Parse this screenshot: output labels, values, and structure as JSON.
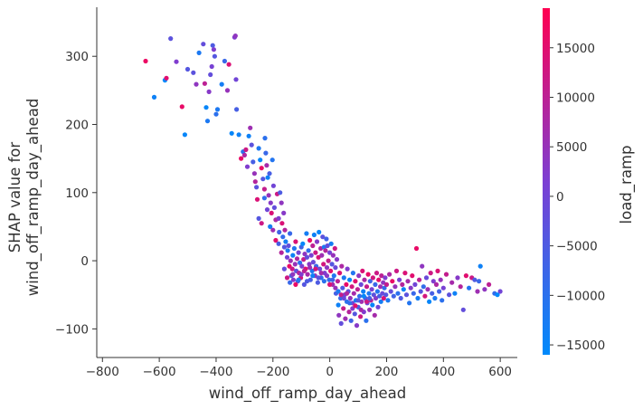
{
  "chart_data": {
    "type": "scatter",
    "title": "",
    "xlabel": "wind_off_ramp_day_ahead",
    "ylabel": "SHAP value for\nwind_off_ramp_day_ahead",
    "xlim": [
      -820,
      660
    ],
    "ylim": [
      -142,
      372
    ],
    "xticks": [
      -800,
      -600,
      -400,
      -200,
      0,
      200,
      400,
      600
    ],
    "yticks": [
      -100,
      0,
      100,
      200,
      300
    ],
    "grid": false,
    "colorbar": {
      "label": "load_ramp",
      "range": [
        -16000,
        19000
      ],
      "ticks": [
        -15000,
        -10000,
        -5000,
        0,
        5000,
        10000,
        15000
      ],
      "colors": [
        "#008afb",
        "#7c3fd3",
        "#ff0051"
      ]
    },
    "points": [
      [
        -648,
        293,
        16500
      ],
      [
        -618,
        240,
        -14000
      ],
      [
        -580,
        265,
        -16000
      ],
      [
        -575,
        268,
        15000
      ],
      [
        -560,
        326,
        -3000
      ],
      [
        -540,
        292,
        2000
      ],
      [
        -520,
        226,
        16000
      ],
      [
        -510,
        185,
        -15000
      ],
      [
        -500,
        281,
        -4000
      ],
      [
        -480,
        276,
        -3000
      ],
      [
        -470,
        259,
        4000
      ],
      [
        -460,
        305,
        -12000
      ],
      [
        -445,
        318,
        -2000
      ],
      [
        -440,
        260,
        10000
      ],
      [
        -435,
        225,
        -15000
      ],
      [
        -430,
        205,
        -12000
      ],
      [
        -425,
        248,
        3000
      ],
      [
        -420,
        273,
        -2000
      ],
      [
        -415,
        285,
        1000
      ],
      [
        -412,
        316,
        -5000
      ],
      [
        -408,
        310,
        2000
      ],
      [
        -405,
        300,
        -4000
      ],
      [
        -400,
        215,
        -10000
      ],
      [
        -395,
        222,
        -12000
      ],
      [
        -380,
        259,
        -13000
      ],
      [
        -370,
        293,
        -8000
      ],
      [
        -360,
        250,
        5000
      ],
      [
        -355,
        288,
        14000
      ],
      [
        -345,
        187,
        -15000
      ],
      [
        -335,
        328,
        2000
      ],
      [
        -332,
        330,
        4000
      ],
      [
        -330,
        266,
        0
      ],
      [
        -328,
        222,
        -6000
      ],
      [
        -320,
        185,
        -14000
      ],
      [
        -312,
        150,
        16000
      ],
      [
        -305,
        160,
        -10000
      ],
      [
        -300,
        155,
        8000
      ],
      [
        -295,
        163,
        12000
      ],
      [
        -290,
        138,
        2000
      ],
      [
        -285,
        183,
        -14000
      ],
      [
        -280,
        195,
        6000
      ],
      [
        -275,
        170,
        -3000
      ],
      [
        -270,
        145,
        -6000
      ],
      [
        -265,
        128,
        5000
      ],
      [
        -262,
        116,
        9000
      ],
      [
        -258,
        108,
        -3000
      ],
      [
        -255,
        90,
        14000
      ],
      [
        -250,
        165,
        -12000
      ],
      [
        -245,
        148,
        -15000
      ],
      [
        -240,
        136,
        16000
      ],
      [
        -235,
        120,
        -4000
      ],
      [
        -230,
        105,
        11000
      ],
      [
        -228,
        180,
        -10000
      ],
      [
        -225,
        158,
        -8000
      ],
      [
        -222,
        140,
        7000
      ],
      [
        -218,
        122,
        -14000
      ],
      [
        -215,
        96,
        5000
      ],
      [
        -212,
        128,
        -6000
      ],
      [
        -208,
        85,
        3000
      ],
      [
        -205,
        70,
        14000
      ],
      [
        -202,
        148,
        -11000
      ],
      [
        -198,
        110,
        0
      ],
      [
        -195,
        78,
        -2000
      ],
      [
        -190,
        60,
        8000
      ],
      [
        -185,
        98,
        12000
      ],
      [
        -180,
        62,
        2000
      ],
      [
        -178,
        42,
        -7000
      ],
      [
        -175,
        100,
        -5000
      ],
      [
        -170,
        85,
        4000
      ],
      [
        -168,
        55,
        14000
      ],
      [
        -165,
        35,
        -9000
      ],
      [
        -162,
        70,
        3000
      ],
      [
        -160,
        20,
        -4000
      ],
      [
        -158,
        45,
        9000
      ],
      [
        -155,
        28,
        -13000
      ],
      [
        -150,
        5,
        1000
      ],
      [
        -148,
        15,
        -12000
      ],
      [
        -145,
        22,
        -2000
      ],
      [
        -142,
        -8,
        16000
      ],
      [
        -140,
        40,
        -8000
      ],
      [
        -138,
        0,
        6000
      ],
      [
        -135,
        -22,
        -5000
      ],
      [
        -132,
        -12,
        12000
      ],
      [
        -130,
        8,
        -14000
      ],
      [
        -128,
        -28,
        2000
      ],
      [
        -125,
        18,
        -11000
      ],
      [
        -122,
        -5,
        5000
      ],
      [
        -120,
        28,
        14000
      ],
      [
        -118,
        -15,
        -3000
      ],
      [
        -115,
        3,
        8000
      ],
      [
        -112,
        -30,
        -6000
      ],
      [
        -110,
        12,
        0
      ],
      [
        -108,
        -18,
        9000
      ],
      [
        -105,
        -3,
        -10000
      ],
      [
        -102,
        -25,
        13000
      ],
      [
        -100,
        20,
        -7000
      ],
      [
        -98,
        -8,
        2000
      ],
      [
        -95,
        25,
        -15000
      ],
      [
        -92,
        2,
        11000
      ],
      [
        -90,
        -35,
        -4000
      ],
      [
        -88,
        10,
        4000
      ],
      [
        -85,
        -12,
        15000
      ],
      [
        -82,
        40,
        -13000
      ],
      [
        -80,
        5,
        -2000
      ],
      [
        -78,
        -20,
        7000
      ],
      [
        -75,
        15,
        -9000
      ],
      [
        -72,
        -5,
        3000
      ],
      [
        -70,
        30,
        16000
      ],
      [
        -68,
        -28,
        -6000
      ],
      [
        -65,
        8,
        1000
      ],
      [
        -62,
        -15,
        -12000
      ],
      [
        -60,
        22,
        10000
      ],
      [
        -58,
        -2,
        -1000
      ],
      [
        -55,
        38,
        -14000
      ],
      [
        -52,
        -22,
        5000
      ],
      [
        -50,
        12,
        12000
      ],
      [
        -48,
        -8,
        -8000
      ],
      [
        -45,
        28,
        3000
      ],
      [
        -42,
        -32,
        -5000
      ],
      [
        -40,
        5,
        14000
      ],
      [
        -38,
        42,
        -15000
      ],
      [
        -35,
        -12,
        0
      ],
      [
        -32,
        18,
        8000
      ],
      [
        -30,
        -25,
        -10000
      ],
      [
        -28,
        8,
        6000
      ],
      [
        -25,
        35,
        -3000
      ],
      [
        -22,
        -5,
        13000
      ],
      [
        -20,
        20,
        -12000
      ],
      [
        -18,
        -18,
        2000
      ],
      [
        -15,
        15,
        9000
      ],
      [
        -12,
        32,
        -7000
      ],
      [
        -10,
        -10,
        4000
      ],
      [
        -8,
        22,
        -2000
      ],
      [
        -5,
        0,
        11000
      ],
      [
        -2,
        -28,
        -9000
      ],
      [
        0,
        12,
        1000
      ],
      [
        3,
        -15,
        15000
      ],
      [
        5,
        25,
        -13000
      ],
      [
        8,
        -5,
        -4000
      ],
      [
        10,
        -35,
        7000
      ],
      [
        12,
        8,
        5000
      ],
      [
        15,
        -22,
        -11000
      ],
      [
        18,
        18,
        12000
      ],
      [
        20,
        -10,
        -1000
      ],
      [
        22,
        -48,
        -6000
      ],
      [
        25,
        2,
        3000
      ],
      [
        28,
        -30,
        10000
      ],
      [
        30,
        -65,
        -14000
      ],
      [
        32,
        -80,
        4000
      ],
      [
        35,
        -18,
        14000
      ],
      [
        38,
        -55,
        -8000
      ],
      [
        40,
        -92,
        -2000
      ],
      [
        42,
        -8,
        8000
      ],
      [
        45,
        -40,
        -5000
      ],
      [
        48,
        -70,
        11000
      ],
      [
        50,
        -25,
        -12000
      ],
      [
        52,
        -50,
        1000
      ],
      [
        55,
        -85,
        6000
      ],
      [
        58,
        -35,
        16000
      ],
      [
        60,
        -60,
        -10000
      ],
      [
        62,
        -12,
        2000
      ],
      [
        65,
        -45,
        -3000
      ],
      [
        68,
        -75,
        9000
      ],
      [
        70,
        -28,
        -15000
      ],
      [
        72,
        -55,
        5000
      ],
      [
        75,
        -88,
        -7000
      ],
      [
        78,
        -38,
        13000
      ],
      [
        80,
        -62,
        0
      ],
      [
        82,
        -18,
        -11000
      ],
      [
        85,
        -48,
        7000
      ],
      [
        88,
        -78,
        -4000
      ],
      [
        90,
        -30,
        15000
      ],
      [
        92,
        -58,
        -13000
      ],
      [
        95,
        -95,
        3000
      ],
      [
        98,
        -42,
        10000
      ],
      [
        100,
        -68,
        -6000
      ],
      [
        102,
        -22,
        4000
      ],
      [
        105,
        -52,
        -9000
      ],
      [
        108,
        -82,
        12000
      ],
      [
        110,
        -35,
        -1000
      ],
      [
        112,
        -60,
        6000
      ],
      [
        115,
        -15,
        14000
      ],
      [
        118,
        -45,
        -14000
      ],
      [
        120,
        -75,
        2000
      ],
      [
        122,
        -28,
        8000
      ],
      [
        125,
        -55,
        -5000
      ],
      [
        128,
        -88,
        -10000
      ],
      [
        130,
        -38,
        11000
      ],
      [
        132,
        -62,
        -2000
      ],
      [
        135,
        -20,
        16000
      ],
      [
        138,
        -48,
        -12000
      ],
      [
        140,
        -72,
        5000
      ],
      [
        142,
        -30,
        -7000
      ],
      [
        145,
        -58,
        9000
      ],
      [
        148,
        -42,
        1000
      ],
      [
        150,
        -65,
        -15000
      ],
      [
        152,
        -25,
        13000
      ],
      [
        155,
        -50,
        -3000
      ],
      [
        158,
        -80,
        7000
      ],
      [
        160,
        -35,
        -8000
      ],
      [
        162,
        -55,
        3000
      ],
      [
        165,
        -18,
        12000
      ],
      [
        168,
        -45,
        -11000
      ],
      [
        170,
        -68,
        0
      ],
      [
        172,
        -28,
        15000
      ],
      [
        175,
        -52,
        -6000
      ],
      [
        178,
        -38,
        6000
      ],
      [
        180,
        -60,
        -13000
      ],
      [
        182,
        -22,
        10000
      ],
      [
        185,
        -48,
        -1000
      ],
      [
        188,
        -32,
        4000
      ],
      [
        190,
        -55,
        14000
      ],
      [
        192,
        -40,
        -9000
      ],
      [
        195,
        -25,
        2000
      ],
      [
        198,
        -50,
        -4000
      ],
      [
        200,
        -35,
        11000
      ],
      [
        205,
        -58,
        -12000
      ],
      [
        210,
        -20,
        8000
      ],
      [
        215,
        -45,
        -2000
      ],
      [
        220,
        -30,
        16000
      ],
      [
        225,
        -52,
        -7000
      ],
      [
        230,
        -38,
        5000
      ],
      [
        235,
        -15,
        12000
      ],
      [
        240,
        -48,
        -10000
      ],
      [
        245,
        -28,
        1000
      ],
      [
        250,
        -55,
        -5000
      ],
      [
        255,
        -35,
        9000
      ],
      [
        260,
        -42,
        -14000
      ],
      [
        265,
        -18,
        14000
      ],
      [
        270,
        -50,
        -3000
      ],
      [
        275,
        -30,
        7000
      ],
      [
        280,
        -62,
        -11000
      ],
      [
        285,
        -40,
        3000
      ],
      [
        290,
        -22,
        15000
      ],
      [
        295,
        -48,
        -8000
      ],
      [
        300,
        -35,
        0
      ],
      [
        305,
        18,
        16000
      ],
      [
        310,
        -55,
        -13000
      ],
      [
        315,
        -28,
        10000
      ],
      [
        320,
        -45,
        -4000
      ],
      [
        325,
        -8,
        4000
      ],
      [
        330,
        -38,
        -9000
      ],
      [
        335,
        -52,
        13000
      ],
      [
        340,
        -25,
        -1000
      ],
      [
        345,
        -42,
        6000
      ],
      [
        350,
        -60,
        -15000
      ],
      [
        355,
        -18,
        12000
      ],
      [
        360,
        -48,
        -6000
      ],
      [
        365,
        -30,
        2000
      ],
      [
        370,
        -55,
        -12000
      ],
      [
        375,
        -35,
        8000
      ],
      [
        380,
        -15,
        14000
      ],
      [
        385,
        -45,
        -7000
      ],
      [
        390,
        -28,
        5000
      ],
      [
        395,
        -58,
        -10000
      ],
      [
        400,
        -40,
        1000
      ],
      [
        410,
        -20,
        11000
      ],
      [
        420,
        -50,
        -3000
      ],
      [
        430,
        -32,
        7000
      ],
      [
        440,
        -48,
        -14000
      ],
      [
        450,
        -25,
        3000
      ],
      [
        460,
        -38,
        9000
      ],
      [
        470,
        -72,
        -2000
      ],
      [
        480,
        -22,
        15000
      ],
      [
        490,
        -40,
        -11000
      ],
      [
        500,
        -25,
        12000
      ],
      [
        510,
        -28,
        -5000
      ],
      [
        520,
        -45,
        6000
      ],
      [
        525,
        -30,
        -8000
      ],
      [
        530,
        -8,
        -14000
      ],
      [
        545,
        -42,
        4000
      ],
      [
        560,
        -35,
        10000
      ],
      [
        580,
        -48,
        -9000
      ],
      [
        590,
        -50,
        -16000
      ],
      [
        600,
        -45,
        0
      ],
      [
        -250,
        62,
        -4000
      ],
      [
        -240,
        55,
        12000
      ],
      [
        -230,
        92,
        -9000
      ],
      [
        -220,
        75,
        0
      ],
      [
        -210,
        50,
        -13000
      ],
      [
        -200,
        45,
        6000
      ],
      [
        -190,
        30,
        15000
      ],
      [
        -180,
        25,
        -6000
      ],
      [
        -170,
        12,
        9000
      ],
      [
        -160,
        -12,
        -2000
      ],
      [
        -150,
        -25,
        12000
      ],
      [
        -140,
        -32,
        -8000
      ],
      [
        -130,
        -20,
        4000
      ],
      [
        -120,
        -35,
        16000
      ],
      [
        -110,
        -28,
        -12000
      ],
      [
        -100,
        -20,
        2000
      ],
      [
        -90,
        -15,
        10000
      ],
      [
        -80,
        -30,
        -5000
      ],
      [
        -70,
        -10,
        6000
      ],
      [
        -60,
        -22,
        -14000
      ],
      [
        -50,
        -12,
        13000
      ],
      [
        -40,
        -25,
        -3000
      ],
      [
        -30,
        -18,
        7000
      ],
      [
        -20,
        -30,
        -10000
      ],
      [
        -10,
        -22,
        3000
      ],
      [
        0,
        -35,
        14000
      ],
      [
        10,
        -28,
        -7000
      ],
      [
        20,
        -40,
        5000
      ],
      [
        30,
        -45,
        -12000
      ],
      [
        40,
        -50,
        11000
      ],
      [
        50,
        -55,
        -1000
      ],
      [
        60,
        -48,
        8000
      ],
      [
        70,
        -62,
        -9000
      ],
      [
        80,
        -70,
        2000
      ],
      [
        90,
        -66,
        15000
      ],
      [
        100,
        -58,
        -4000
      ],
      [
        110,
        -72,
        7000
      ],
      [
        120,
        -52,
        -15000
      ],
      [
        130,
        -60,
        12000
      ],
      [
        140,
        -55,
        -6000
      ]
    ]
  }
}
